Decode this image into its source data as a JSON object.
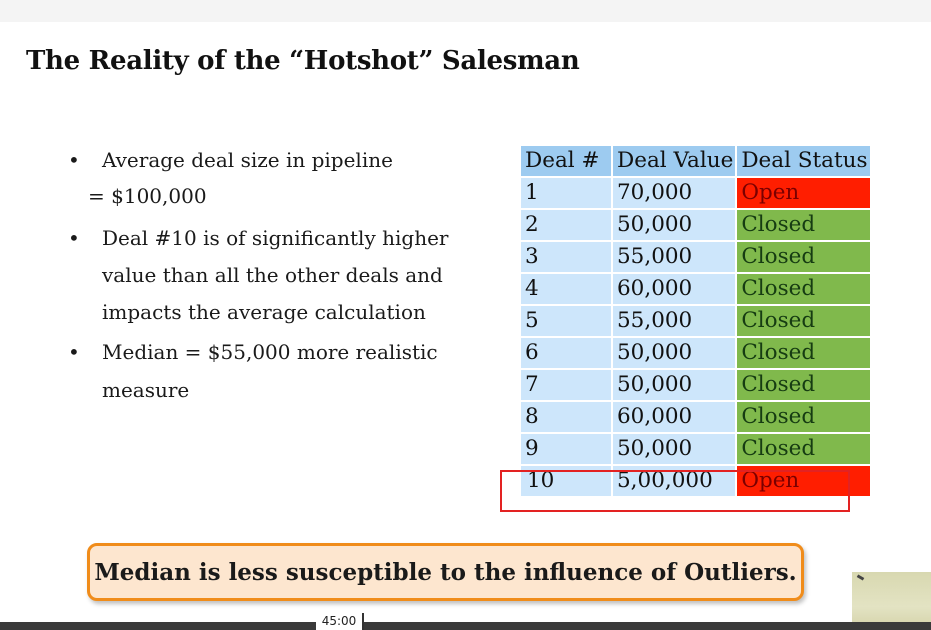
{
  "slide": {
    "title": "The Reality of the “Hotshot” Salesman",
    "bullets": [
      {
        "text": "Average deal size in pipeline",
        "continuation": "= $100,000"
      },
      {
        "text": "Deal #10 is of significantly higher",
        "continuation_lines": [
          "value than all the other deals and",
          "impacts the average calculation"
        ]
      },
      {
        "text": "Median = $55,000 more realistic",
        "continuation": "measure"
      }
    ],
    "bullet_symbol": "•",
    "table": {
      "headers": [
        "Deal #",
        "Deal Value",
        "Deal Status"
      ],
      "rows": [
        {
          "num": "1",
          "value": "70,000",
          "status": "Open"
        },
        {
          "num": "2",
          "value": "50,000",
          "status": "Closed"
        },
        {
          "num": "3",
          "value": "55,000",
          "status": "Closed"
        },
        {
          "num": "4",
          "value": "60,000",
          "status": "Closed"
        },
        {
          "num": "5",
          "value": "55,000",
          "status": "Closed"
        },
        {
          "num": "6",
          "value": "50,000",
          "status": "Closed"
        },
        {
          "num": "7",
          "value": "50,000",
          "status": "Closed"
        },
        {
          "num": "8",
          "value": "60,000",
          "status": "Closed"
        },
        {
          "num": "9",
          "value": "50,000",
          "status": "Closed"
        },
        {
          "num": "10",
          "value": "5,00,000",
          "status": "Open"
        }
      ],
      "highlighted_row": "10"
    },
    "callout": "Median is less susceptible to the influence of Outliers."
  },
  "player": {
    "time": "45:00"
  },
  "colors": {
    "open": "#ff1e00",
    "closed": "#80b94c",
    "header": "#9dcbf0",
    "cell": "#cde6fb",
    "callout_border": "#f08c1a",
    "callout_fill": "#fde6cf",
    "outlier_border": "#e32222"
  }
}
